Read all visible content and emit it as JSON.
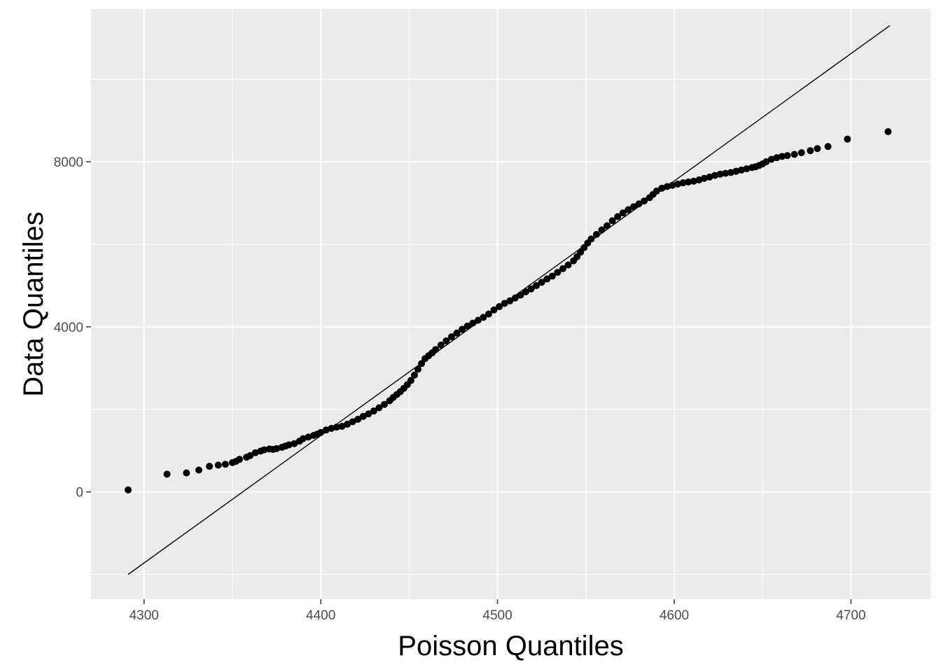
{
  "chart_data": {
    "type": "scatter",
    "title": "",
    "xlabel": "Poisson Quantiles",
    "ylabel": "Data Quantiles",
    "xlim": [
      4270,
      4745
    ],
    "ylim": [
      -2600,
      11700
    ],
    "x_ticks": [
      4300,
      4400,
      4500,
      4600,
      4700
    ],
    "x_tick_labels": [
      "4300",
      "4400",
      "4500",
      "4600",
      "4700"
    ],
    "x_minor_ticks": [
      4350,
      4450,
      4550,
      4650
    ],
    "y_ticks": [
      0,
      4000,
      8000
    ],
    "y_tick_labels": [
      "0",
      "4000",
      "8000"
    ],
    "y_minor_ticks": [
      -2000,
      2000,
      6000,
      10000
    ],
    "grid": true,
    "colors": {
      "panel_background": "#ebebeb",
      "grid_line": "#ffffff",
      "point": "#000000",
      "reference_line": "#000000"
    },
    "reference_line": {
      "x": [
        4291,
        4722
      ],
      "y": [
        -2000,
        11300
      ]
    },
    "series": [
      {
        "x": [
          4291,
          4313,
          4324,
          4331,
          4337,
          4342,
          4346,
          4350,
          4352,
          4354,
          4358,
          4360,
          4363,
          4366,
          4368,
          4371,
          4373,
          4375,
          4378,
          4380,
          4382,
          4385,
          4388,
          4390,
          4393,
          4396,
          4398,
          4400,
          4403,
          4406,
          4409,
          4412,
          4415,
          4418,
          4421,
          4424,
          4427,
          4430,
          4433,
          4436,
          4439,
          4441,
          4443,
          4445,
          4447,
          4449,
          4451,
          4453,
          4455,
          4457,
          4459,
          4461,
          4463,
          4465,
          4468,
          4471,
          4474,
          4477,
          4480,
          4483,
          4486,
          4489,
          4492,
          4495,
          4498,
          4501,
          4504,
          4507,
          4510,
          4513,
          4516,
          4519,
          4522,
          4525,
          4528,
          4531,
          4534,
          4537,
          4540,
          4543,
          4545,
          4547,
          4549,
          4551,
          4553,
          4556,
          4559,
          4562,
          4565,
          4568,
          4571,
          4574,
          4577,
          4580,
          4583,
          4586,
          4588,
          4590,
          4593,
          4596,
          4599,
          4602,
          4605,
          4608,
          4611,
          4614,
          4617,
          4620,
          4623,
          4626,
          4629,
          4632,
          4635,
          4638,
          4641,
          4644,
          4646,
          4648,
          4650,
          4652,
          4655,
          4658,
          4661,
          4664,
          4668,
          4672,
          4677,
          4681,
          4687,
          4698,
          4721
        ],
        "y": [
          50,
          430,
          460,
          530,
          620,
          650,
          670,
          710,
          740,
          790,
          840,
          880,
          950,
          990,
          1020,
          1040,
          1030,
          1050,
          1080,
          1110,
          1140,
          1170,
          1230,
          1290,
          1330,
          1370,
          1400,
          1440,
          1500,
          1540,
          1570,
          1590,
          1640,
          1700,
          1760,
          1830,
          1890,
          1960,
          2040,
          2120,
          2210,
          2290,
          2360,
          2430,
          2510,
          2600,
          2700,
          2830,
          2970,
          3110,
          3230,
          3300,
          3370,
          3450,
          3560,
          3660,
          3760,
          3850,
          3940,
          4020,
          4090,
          4160,
          4230,
          4310,
          4410,
          4490,
          4570,
          4630,
          4700,
          4770,
          4850,
          4920,
          5000,
          5080,
          5160,
          5230,
          5320,
          5410,
          5500,
          5600,
          5700,
          5810,
          5920,
          6030,
          6130,
          6240,
          6350,
          6450,
          6570,
          6670,
          6760,
          6840,
          6910,
          6980,
          7050,
          7130,
          7210,
          7290,
          7360,
          7400,
          7430,
          7460,
          7490,
          7510,
          7530,
          7560,
          7600,
          7630,
          7670,
          7700,
          7720,
          7740,
          7770,
          7800,
          7830,
          7860,
          7880,
          7910,
          7950,
          8000,
          8060,
          8100,
          8130,
          8150,
          8180,
          8220,
          8270,
          8320,
          8370,
          8550,
          8730
        ]
      }
    ]
  }
}
